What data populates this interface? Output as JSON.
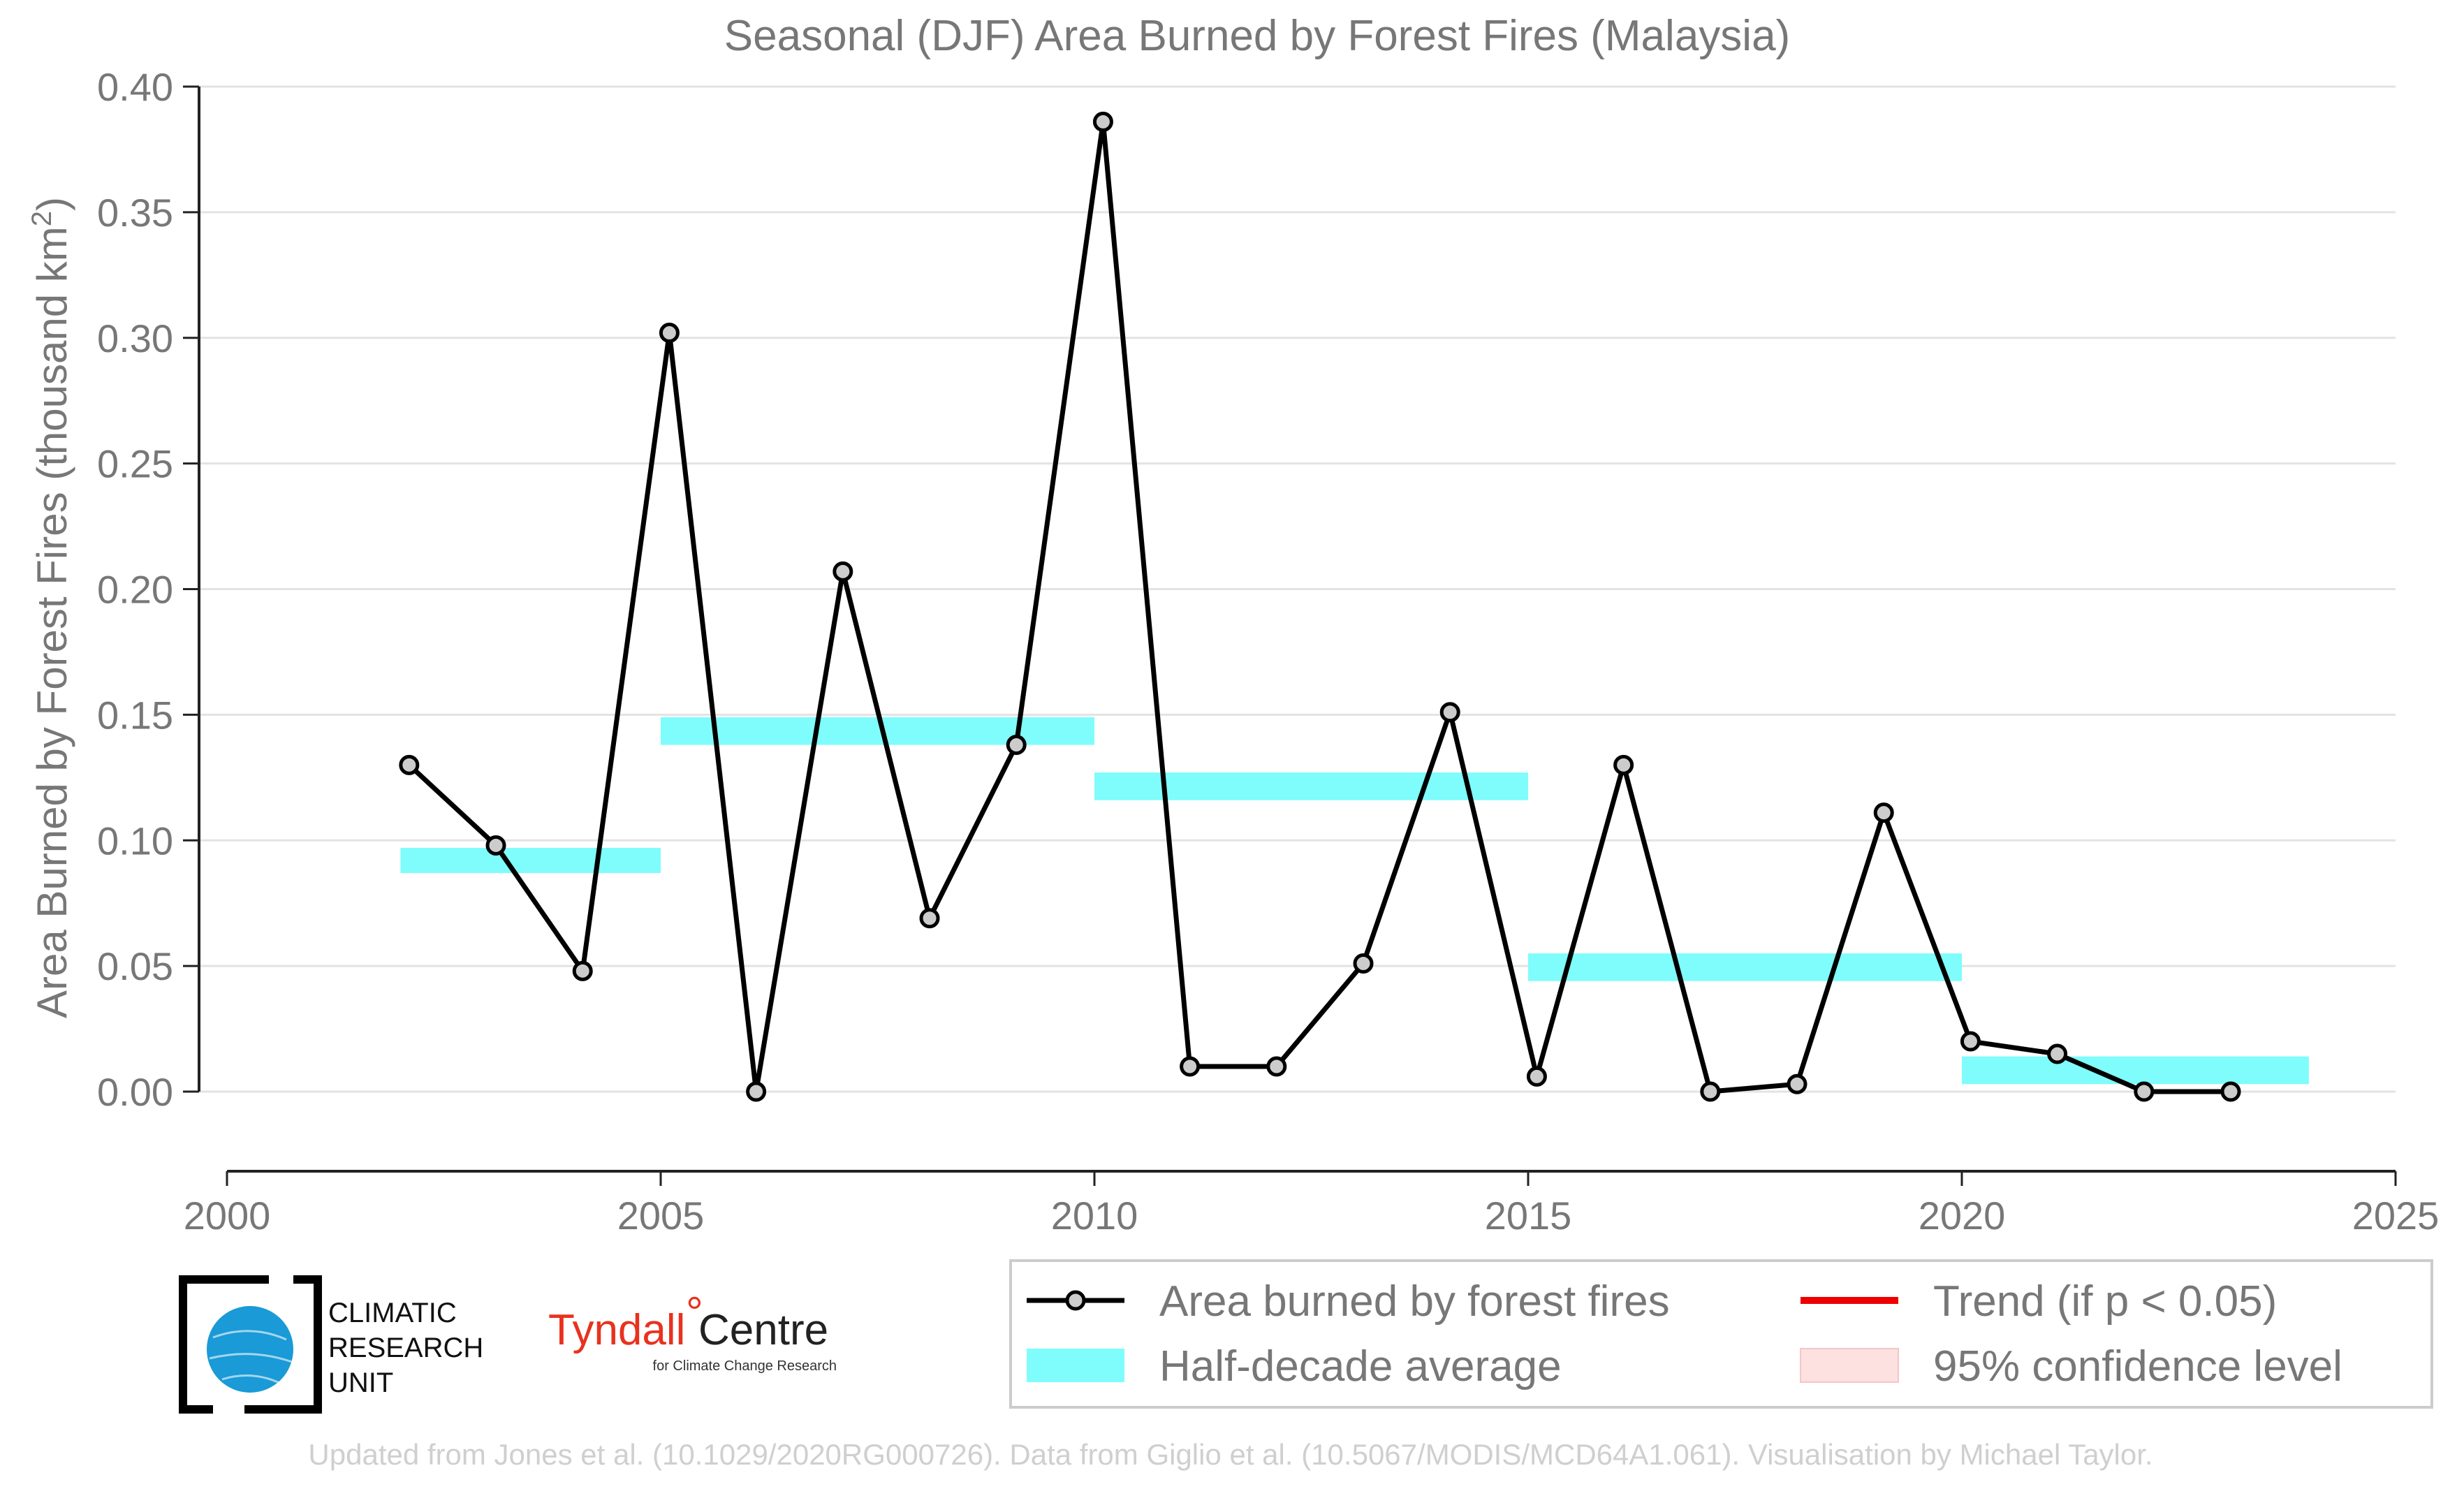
{
  "chart_data": {
    "type": "line",
    "title": "Seasonal (DJF) Area Burned by Forest Fires (Malaysia)",
    "xlabel": "",
    "ylabel": "Area Burned by Forest Fires (thousand km",
    "ylabel_sup": "2",
    "ylabel_end": ")",
    "xlim": [
      2000,
      2025
    ],
    "ylim": [
      -0.03,
      0.4
    ],
    "x_ticks": [
      "2000",
      "2005",
      "2010",
      "2015",
      "2020",
      "2025"
    ],
    "y_ticks": [
      "0.00",
      "0.05",
      "0.10",
      "0.15",
      "0.20",
      "0.25",
      "0.30",
      "0.35",
      "0.40"
    ],
    "grid": "horizontal",
    "series": [
      {
        "name": "Area burned by forest fires",
        "color": "#000000",
        "marker_fill": "#cccccc",
        "x": [
          2002.1,
          2003.1,
          2004.1,
          2005.1,
          2006.1,
          2007.1,
          2008.1,
          2009.1,
          2010.1,
          2011.1,
          2012.1,
          2013.1,
          2014.1,
          2015.1,
          2016.1,
          2017.1,
          2018.1,
          2019.1,
          2020.1,
          2021.1,
          2022.1,
          2023.1
        ],
        "values": [
          0.13,
          0.098,
          0.048,
          0.302,
          0.0,
          0.207,
          0.069,
          0.138,
          0.386,
          0.01,
          0.01,
          0.051,
          0.151,
          0.006,
          0.13,
          0.0,
          0.003,
          0.111,
          0.02,
          0.015,
          0.0,
          0.0
        ]
      }
    ],
    "half_decade_averages": {
      "name": "Half-decade average",
      "color": "#7ffcfc",
      "segments": [
        {
          "x0": 2002,
          "x1": 2005,
          "y0": 0.087,
          "y1": 0.097
        },
        {
          "x0": 2005,
          "x1": 2010,
          "y0": 0.138,
          "y1": 0.149
        },
        {
          "x0": 2010,
          "x1": 2015,
          "y0": 0.116,
          "y1": 0.127
        },
        {
          "x0": 2015,
          "x1": 2020,
          "y0": 0.044,
          "y1": 0.055
        },
        {
          "x0": 2020,
          "x1": 2024,
          "y0": 0.003,
          "y1": 0.014
        }
      ]
    },
    "legend": {
      "placement": "bottom-right",
      "entries": [
        {
          "label": "Area burned by forest fires",
          "kind": "line-marker",
          "color": "#000000"
        },
        {
          "label": "Trend (if p < 0.05)",
          "kind": "line",
          "color": "#ee0000"
        },
        {
          "label": "Half-decade average",
          "kind": "band",
          "color": "#7ffcfc"
        },
        {
          "label": "95% confidence level",
          "kind": "band",
          "color": "#fde0e0"
        }
      ]
    }
  },
  "logos": {
    "cru": [
      "CLIMATIC",
      "RESEARCH",
      "UNIT"
    ],
    "tyndall_main": "Tyndall",
    "tyndall_degree": "°",
    "tyndall_centre": "Centre",
    "tyndall_sub": "for Climate Change Research"
  },
  "footer": "Updated from Jones et al. (10.1029/2020RG000726). Data from Giglio et al. (10.5067/MODIS/MCD64A1.061). Visualisation by Michael Taylor."
}
